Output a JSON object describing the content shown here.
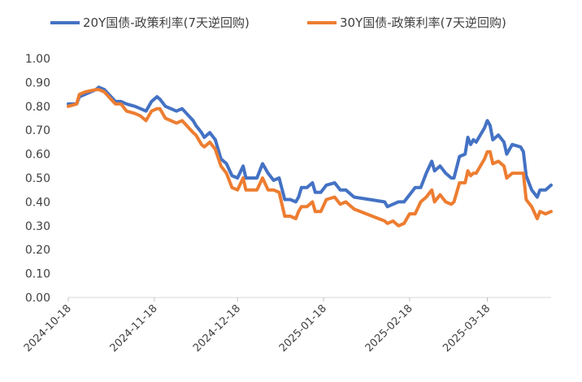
{
  "chart_data": {
    "type": "line",
    "legend_position": "top",
    "grid": false,
    "ylim": [
      0,
      1
    ],
    "yticks": [
      "0.00",
      "0.10",
      "0.20",
      "0.30",
      "0.40",
      "0.50",
      "0.60",
      "0.70",
      "0.80",
      "0.90",
      "1.00"
    ],
    "xlim": [
      "2024-10-18",
      "2025-04-10"
    ],
    "xticks": [
      "2024-10-18",
      "2024-11-18",
      "2024-12-18",
      "2025-01-18",
      "2025-02-18",
      "2025-03-18"
    ],
    "series": [
      {
        "name": "20Y国债-政策利率(7天逆回购)",
        "color": "#4472C4",
        "points": [
          [
            "2024-10-18",
            0.81
          ],
          [
            "2024-10-21",
            0.81
          ],
          [
            "2024-10-22",
            0.84
          ],
          [
            "2024-10-24",
            0.85
          ],
          [
            "2024-10-28",
            0.87
          ],
          [
            "2024-10-29",
            0.88
          ],
          [
            "2024-10-31",
            0.87
          ],
          [
            "2024-11-04",
            0.82
          ],
          [
            "2024-11-06",
            0.82
          ],
          [
            "2024-11-08",
            0.81
          ],
          [
            "2024-11-11",
            0.8
          ],
          [
            "2024-11-13",
            0.79
          ],
          [
            "2024-11-15",
            0.78
          ],
          [
            "2024-11-17",
            0.82
          ],
          [
            "2024-11-19",
            0.84
          ],
          [
            "2024-11-20",
            0.83
          ],
          [
            "2024-11-22",
            0.8
          ],
          [
            "2024-11-26",
            0.78
          ],
          [
            "2024-11-28",
            0.79
          ],
          [
            "2024-12-02",
            0.74
          ],
          [
            "2024-12-03",
            0.72
          ],
          [
            "2024-12-05",
            0.69
          ],
          [
            "2024-12-06",
            0.67
          ],
          [
            "2024-12-08",
            0.69
          ],
          [
            "2024-12-10",
            0.66
          ],
          [
            "2024-12-12",
            0.58
          ],
          [
            "2024-12-14",
            0.56
          ],
          [
            "2024-12-16",
            0.51
          ],
          [
            "2024-12-18",
            0.5
          ],
          [
            "2024-12-20",
            0.55
          ],
          [
            "2024-12-21",
            0.5
          ],
          [
            "2024-12-25",
            0.5
          ],
          [
            "2024-12-27",
            0.56
          ],
          [
            "2024-12-29",
            0.52
          ],
          [
            "2024-12-31",
            0.49
          ],
          [
            "2025-01-02",
            0.5
          ],
          [
            "2025-01-04",
            0.41
          ],
          [
            "2025-01-06",
            0.41
          ],
          [
            "2025-01-08",
            0.4
          ],
          [
            "2025-01-09",
            0.42
          ],
          [
            "2025-01-10",
            0.46
          ],
          [
            "2025-01-12",
            0.46
          ],
          [
            "2025-01-14",
            0.48
          ],
          [
            "2025-01-15",
            0.44
          ],
          [
            "2025-01-17",
            0.44
          ],
          [
            "2025-01-19",
            0.47
          ],
          [
            "2025-01-22",
            0.48
          ],
          [
            "2025-01-24",
            0.45
          ],
          [
            "2025-01-26",
            0.45
          ],
          [
            "2025-01-29",
            0.42
          ],
          [
            "2025-02-09",
            0.4
          ],
          [
            "2025-02-10",
            0.38
          ],
          [
            "2025-02-12",
            0.39
          ],
          [
            "2025-02-14",
            0.4
          ],
          [
            "2025-02-16",
            0.4
          ],
          [
            "2025-02-18",
            0.43
          ],
          [
            "2025-02-20",
            0.46
          ],
          [
            "2025-02-22",
            0.46
          ],
          [
            "2025-02-24",
            0.52
          ],
          [
            "2025-02-26",
            0.57
          ],
          [
            "2025-02-27",
            0.53
          ],
          [
            "2025-03-01",
            0.55
          ],
          [
            "2025-03-03",
            0.52
          ],
          [
            "2025-03-05",
            0.5
          ],
          [
            "2025-03-06",
            0.5
          ],
          [
            "2025-03-08",
            0.59
          ],
          [
            "2025-03-10",
            0.6
          ],
          [
            "2025-03-11",
            0.67
          ],
          [
            "2025-03-12",
            0.64
          ],
          [
            "2025-03-13",
            0.66
          ],
          [
            "2025-03-14",
            0.65
          ],
          [
            "2025-03-17",
            0.71
          ],
          [
            "2025-03-18",
            0.74
          ],
          [
            "2025-03-19",
            0.72
          ],
          [
            "2025-03-20",
            0.66
          ],
          [
            "2025-03-22",
            0.68
          ],
          [
            "2025-03-24",
            0.65
          ],
          [
            "2025-03-25",
            0.6
          ],
          [
            "2025-03-27",
            0.64
          ],
          [
            "2025-03-30",
            0.63
          ],
          [
            "2025-03-31",
            0.61
          ],
          [
            "2025-04-01",
            0.51
          ],
          [
            "2025-04-03",
            0.45
          ],
          [
            "2025-04-05",
            0.42
          ],
          [
            "2025-04-06",
            0.45
          ],
          [
            "2025-04-08",
            0.45
          ],
          [
            "2025-04-10",
            0.47
          ]
        ]
      },
      {
        "name": "30Y国债-政策利率(7天逆回购)",
        "color": "#ED7D31",
        "points": [
          [
            "2024-10-18",
            0.8
          ],
          [
            "2024-10-21",
            0.81
          ],
          [
            "2024-10-22",
            0.85
          ],
          [
            "2024-10-24",
            0.86
          ],
          [
            "2024-10-28",
            0.87
          ],
          [
            "2024-10-29",
            0.87
          ],
          [
            "2024-10-31",
            0.86
          ],
          [
            "2024-11-04",
            0.81
          ],
          [
            "2024-11-06",
            0.81
          ],
          [
            "2024-11-08",
            0.78
          ],
          [
            "2024-11-11",
            0.77
          ],
          [
            "2024-11-13",
            0.76
          ],
          [
            "2024-11-15",
            0.74
          ],
          [
            "2024-11-17",
            0.78
          ],
          [
            "2024-11-19",
            0.79
          ],
          [
            "2024-11-20",
            0.79
          ],
          [
            "2024-11-22",
            0.75
          ],
          [
            "2024-11-26",
            0.73
          ],
          [
            "2024-11-28",
            0.74
          ],
          [
            "2024-12-02",
            0.69
          ],
          [
            "2024-12-03",
            0.68
          ],
          [
            "2024-12-05",
            0.64
          ],
          [
            "2024-12-06",
            0.63
          ],
          [
            "2024-12-08",
            0.65
          ],
          [
            "2024-12-10",
            0.62
          ],
          [
            "2024-12-12",
            0.55
          ],
          [
            "2024-12-14",
            0.52
          ],
          [
            "2024-12-16",
            0.46
          ],
          [
            "2024-12-18",
            0.45
          ],
          [
            "2024-12-20",
            0.5
          ],
          [
            "2024-12-21",
            0.45
          ],
          [
            "2024-12-25",
            0.45
          ],
          [
            "2024-12-27",
            0.5
          ],
          [
            "2024-12-29",
            0.45
          ],
          [
            "2024-12-31",
            0.45
          ],
          [
            "2025-01-02",
            0.44
          ],
          [
            "2025-01-04",
            0.34
          ],
          [
            "2025-01-06",
            0.34
          ],
          [
            "2025-01-08",
            0.33
          ],
          [
            "2025-01-09",
            0.36
          ],
          [
            "2025-01-10",
            0.38
          ],
          [
            "2025-01-12",
            0.38
          ],
          [
            "2025-01-14",
            0.4
          ],
          [
            "2025-01-15",
            0.36
          ],
          [
            "2025-01-17",
            0.36
          ],
          [
            "2025-01-19",
            0.41
          ],
          [
            "2025-01-22",
            0.42
          ],
          [
            "2025-01-24",
            0.39
          ],
          [
            "2025-01-26",
            0.4
          ],
          [
            "2025-01-29",
            0.37
          ],
          [
            "2025-02-09",
            0.32
          ],
          [
            "2025-02-10",
            0.31
          ],
          [
            "2025-02-12",
            0.32
          ],
          [
            "2025-02-14",
            0.3
          ],
          [
            "2025-02-16",
            0.31
          ],
          [
            "2025-02-18",
            0.35
          ],
          [
            "2025-02-20",
            0.35
          ],
          [
            "2025-02-22",
            0.4
          ],
          [
            "2025-02-24",
            0.42
          ],
          [
            "2025-02-26",
            0.45
          ],
          [
            "2025-02-27",
            0.4
          ],
          [
            "2025-03-01",
            0.43
          ],
          [
            "2025-03-03",
            0.4
          ],
          [
            "2025-03-05",
            0.39
          ],
          [
            "2025-03-06",
            0.4
          ],
          [
            "2025-03-08",
            0.48
          ],
          [
            "2025-03-10",
            0.48
          ],
          [
            "2025-03-11",
            0.53
          ],
          [
            "2025-03-12",
            0.51
          ],
          [
            "2025-03-13",
            0.52
          ],
          [
            "2025-03-14",
            0.52
          ],
          [
            "2025-03-17",
            0.58
          ],
          [
            "2025-03-18",
            0.61
          ],
          [
            "2025-03-19",
            0.61
          ],
          [
            "2025-03-20",
            0.56
          ],
          [
            "2025-03-22",
            0.57
          ],
          [
            "2025-03-24",
            0.55
          ],
          [
            "2025-03-25",
            0.5
          ],
          [
            "2025-03-27",
            0.52
          ],
          [
            "2025-03-30",
            0.52
          ],
          [
            "2025-03-31",
            0.52
          ],
          [
            "2025-04-01",
            0.41
          ],
          [
            "2025-04-03",
            0.38
          ],
          [
            "2025-04-05",
            0.33
          ],
          [
            "2025-04-06",
            0.36
          ],
          [
            "2025-04-08",
            0.35
          ],
          [
            "2025-04-10",
            0.36
          ]
        ]
      }
    ]
  }
}
